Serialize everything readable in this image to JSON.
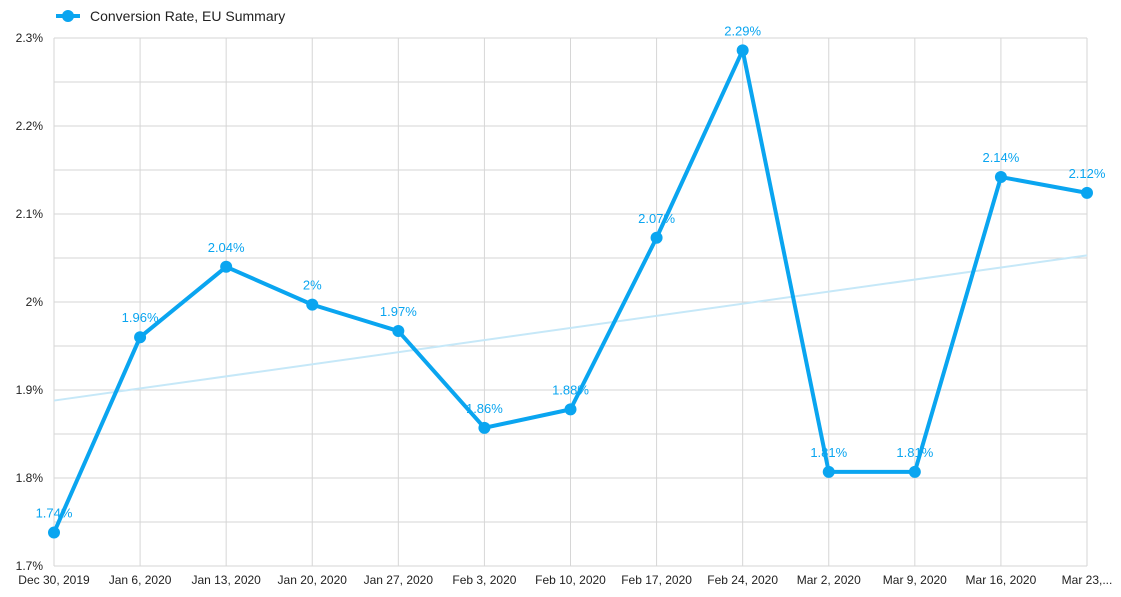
{
  "chart_data": {
    "type": "line",
    "legend": {
      "label": "Conversion Rate, EU Summary",
      "position": "top-left"
    },
    "categories": [
      "Dec 30, 2019",
      "Jan 6, 2020",
      "Jan 13, 2020",
      "Jan 20, 2020",
      "Jan 27, 2020",
      "Feb 3, 2020",
      "Feb 10, 2020",
      "Feb 17, 2020",
      "Feb 24, 2020",
      "Mar 2, 2020",
      "Mar 9, 2020",
      "Mar 16, 2020",
      "Mar 23,..."
    ],
    "series": [
      {
        "name": "Conversion Rate, EU Summary",
        "values": [
          1.738,
          1.96,
          2.04,
          1.997,
          1.967,
          1.857,
          1.878,
          2.073,
          2.286,
          1.807,
          1.807,
          2.142,
          2.124
        ],
        "labels": [
          "1.74%",
          "1.96%",
          "2.04%",
          "2%",
          "1.97%",
          "1.86%",
          "1.88%",
          "2.07%",
          "2.29%",
          "1.81%",
          "1.81%",
          "2.14%",
          "2.12%"
        ]
      }
    ],
    "trendline": {
      "start": 1.888,
      "end": 2.053
    },
    "yticks": [
      {
        "value": 1.7,
        "label": "1.7%"
      },
      {
        "value": 1.8,
        "label": "1.8%"
      },
      {
        "value": 1.9,
        "label": "1.9%"
      },
      {
        "value": 2.0,
        "label": "2%"
      },
      {
        "value": 2.1,
        "label": "2.1%"
      },
      {
        "value": 2.2,
        "label": "2.2%"
      },
      {
        "value": 2.3,
        "label": "2.3%"
      }
    ],
    "ylim": [
      1.7,
      2.3
    ],
    "grid": true,
    "colors": {
      "line": "#0aa5f0",
      "trend": "#c6e8f8",
      "grid": "#d6d6d6",
      "label": "#0aa5f0"
    }
  }
}
